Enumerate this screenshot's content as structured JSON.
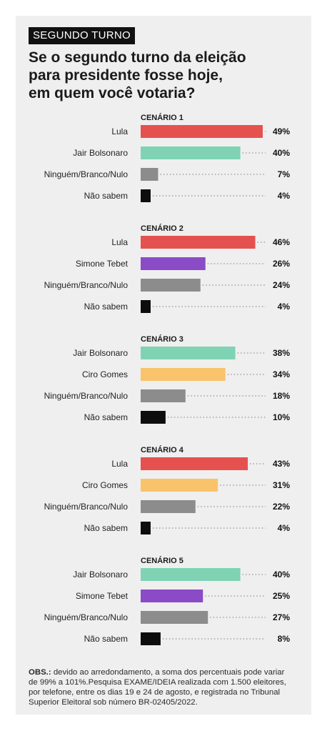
{
  "header": {
    "badge": "SEGUNDO TURNO",
    "title_lines": [
      "Se o segundo turno da eleição",
      "para presidente fosse hoje,",
      "em quem você votaria?"
    ]
  },
  "colors": {
    "Lula": "#e5514f",
    "Jair Bolsonaro": "#7fd3b4",
    "Simone Tebet": "#8b4bc6",
    "Ciro Gomes": "#f8c36a",
    "Ninguém/Branco/Nulo": "#8c8c8c",
    "Não sabem": "#0d0d0d"
  },
  "chart_data": [
    {
      "type": "bar",
      "title": "CENÁRIO 1",
      "categories": [
        "Lula",
        "Jair Bolsonaro",
        "Ninguém/Branco/Nulo",
        "Não sabem"
      ],
      "values": [
        49,
        40,
        7,
        4
      ],
      "labels": [
        "49%",
        "40%",
        "7%",
        "4%"
      ]
    },
    {
      "type": "bar",
      "title": "CENÁRIO 2",
      "categories": [
        "Lula",
        "Simone Tebet",
        "Ninguém/Branco/Nulo",
        "Não sabem"
      ],
      "values": [
        46,
        26,
        24,
        4
      ],
      "labels": [
        "46%",
        "26%",
        "24%",
        "4%"
      ]
    },
    {
      "type": "bar",
      "title": "CENÁRIO 3",
      "categories": [
        "Jair Bolsonaro",
        "Ciro Gomes",
        "Ninguém/Branco/Nulo",
        "Não sabem"
      ],
      "values": [
        38,
        34,
        18,
        10
      ],
      "labels": [
        "38%",
        "34%",
        "18%",
        "10%"
      ]
    },
    {
      "type": "bar",
      "title": "CENÁRIO 4",
      "categories": [
        "Lula",
        "Ciro Gomes",
        "Ninguém/Branco/Nulo",
        "Não sabem"
      ],
      "values": [
        43,
        31,
        22,
        4
      ],
      "labels": [
        "43%",
        "31%",
        "22%",
        "4%"
      ]
    },
    {
      "type": "bar",
      "title": "CENÁRIO 5",
      "categories": [
        "Jair Bolsonaro",
        "Simone Tebet",
        "Ninguém/Branco/Nulo",
        "Não sabem"
      ],
      "values": [
        40,
        25,
        27,
        8
      ],
      "labels": [
        "40%",
        "25%",
        "27%",
        "8%"
      ]
    }
  ],
  "notes": {
    "label": "OBS.:",
    "line1": " devido ao arredondamento, a soma dos percentuais pode variar",
    "line2": "de 99% a 101%.Pesquisa EXAME/IDEIA realizada com 1.500 eleitores,",
    "line3": "por telefone, entre os dias 19 e 24 de agosto, e registrada no Tribunal",
    "line4": "Superior Eleitoral sob número BR-02405/2022."
  }
}
